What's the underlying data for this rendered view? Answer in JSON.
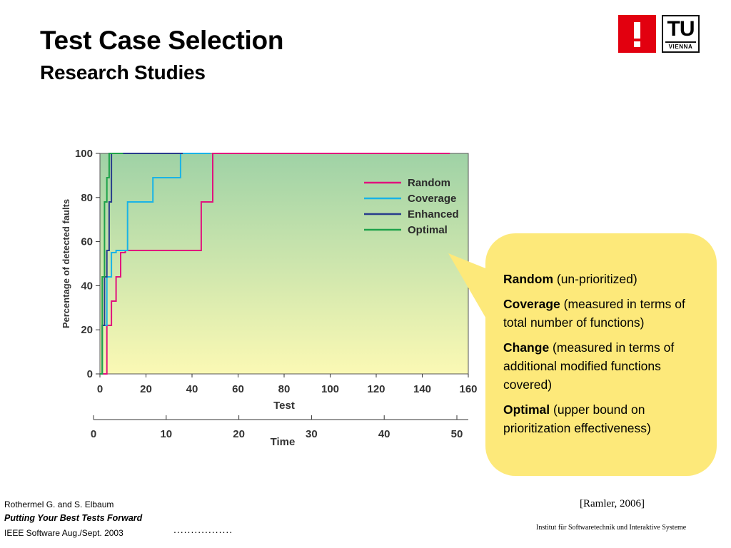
{
  "slide": {
    "title": "Test Case Selection",
    "subtitle": "Research Studies"
  },
  "logo": {
    "mark": "!",
    "tu_text": "TU",
    "tu_sub": "VIENNA",
    "colors": {
      "red": "#e2000f",
      "dark": "#111111"
    }
  },
  "chart_data": {
    "type": "line",
    "xlabel": "Test",
    "ylabel": "Percentage of detected faults",
    "xlim": [
      0,
      160
    ],
    "ylim": [
      0,
      100
    ],
    "xticks": [
      0,
      20,
      40,
      60,
      80,
      100,
      120,
      140,
      160
    ],
    "yticks": [
      0,
      20,
      40,
      60,
      80,
      100
    ],
    "secondary_axis": {
      "label": "Time",
      "ticks": [
        0,
        10,
        20,
        30,
        40,
        50
      ]
    },
    "legend_position": "top-right",
    "background_gradient": [
      "#9fd2a6",
      "#fbf9b4"
    ],
    "series": [
      {
        "name": "Random",
        "color": "#e0127d",
        "x": [
          0,
          3,
          3,
          5,
          5,
          7,
          7,
          9,
          9,
          11,
          11,
          44,
          44,
          49,
          49,
          152
        ],
        "y": [
          0,
          0,
          22,
          22,
          33,
          33,
          44,
          44,
          55,
          55,
          56,
          56,
          78,
          78,
          100,
          100
        ]
      },
      {
        "name": "Coverage",
        "color": "#19b3e6",
        "x": [
          0,
          1,
          1,
          3,
          3,
          5,
          5,
          7,
          7,
          12,
          12,
          23,
          23,
          35,
          35,
          48
        ],
        "y": [
          0,
          0,
          22,
          22,
          44,
          44,
          55,
          55,
          56,
          56,
          78,
          78,
          89,
          89,
          100,
          100
        ]
      },
      {
        "name": "Enhanced",
        "color": "#283c8c",
        "x": [
          0,
          1,
          1,
          2,
          2,
          3,
          3,
          4,
          4,
          5,
          5,
          36
        ],
        "y": [
          0,
          0,
          22,
          22,
          44,
          44,
          56,
          56,
          78,
          78,
          100,
          100
        ]
      },
      {
        "name": "Optimal",
        "color": "#1fa24a",
        "x": [
          0,
          1,
          1,
          2,
          2,
          3,
          3,
          4,
          4,
          10
        ],
        "y": [
          0,
          0,
          44,
          44,
          78,
          78,
          89,
          89,
          100,
          100
        ]
      }
    ]
  },
  "bubble": {
    "fill": "#fde97a",
    "items": [
      {
        "term": "Random",
        "desc": " (un-prioritized)"
      },
      {
        "term": "Coverage",
        "desc": " (measured in terms of total number of functions)"
      },
      {
        "term": "Change",
        "desc": " (measured in terms of additional modified functions covered)"
      },
      {
        "term": "Optimal",
        "desc": " (upper bound on prioritization effectiveness)"
      }
    ]
  },
  "footer": {
    "authors": "Rothermel G. and S. Elbaum",
    "paper_title": "Putting Your Best Tests Forward",
    "venue": "IEEE Software Aug./Sept. 2003",
    "dots": ".................",
    "reference": "[Ramler, 2006]",
    "institute": "Institut für Softwaretechnik und Interaktive Systeme"
  }
}
